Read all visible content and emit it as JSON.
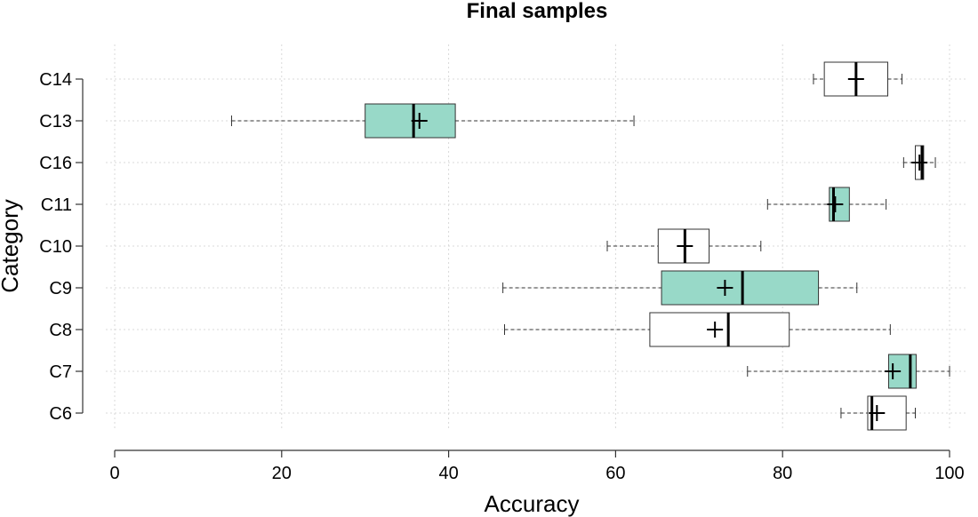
{
  "chart_data": {
    "type": "boxplot",
    "orientation": "horizontal",
    "title": "Final samples",
    "xlabel": "Accuracy",
    "ylabel": "Category",
    "xlim": [
      0,
      100
    ],
    "xticks": [
      0,
      20,
      40,
      60,
      80,
      100
    ],
    "grid": true,
    "colors": {
      "teal": "#98d9c8",
      "white": "#ffffff"
    },
    "series": [
      {
        "category": "C14",
        "min": 83.7,
        "q1": 85,
        "median": 88.8,
        "q3": 92.6,
        "max": 94.3,
        "mean": 88.8,
        "fill": "white"
      },
      {
        "category": "C13",
        "min": 14,
        "q1": 30,
        "median": 35.8,
        "q3": 40.8,
        "max": 62.2,
        "mean": 36.5,
        "fill": "teal"
      },
      {
        "category": "C16",
        "min": 94.5,
        "q1": 95.9,
        "median": 96.7,
        "q3": 96.9,
        "max": 98.3,
        "mean": 96.4,
        "fill": "white"
      },
      {
        "category": "C11",
        "min": 78.2,
        "q1": 85.6,
        "median": 86.1,
        "q3": 88,
        "max": 92.4,
        "mean": 86.3,
        "fill": "teal"
      },
      {
        "category": "C10",
        "min": 59,
        "q1": 65.1,
        "median": 68.3,
        "q3": 71.2,
        "max": 77.4,
        "mean": 68.3,
        "fill": "white"
      },
      {
        "category": "C9",
        "min": 46.5,
        "q1": 65.5,
        "median": 75.2,
        "q3": 84.3,
        "max": 88.9,
        "mean": 73.1,
        "fill": "teal"
      },
      {
        "category": "C8",
        "min": 46.7,
        "q1": 64.1,
        "median": 73.5,
        "q3": 80.8,
        "max": 92.9,
        "mean": 71.9,
        "fill": "white"
      },
      {
        "category": "C7",
        "min": 75.8,
        "q1": 92.7,
        "median": 95.3,
        "q3": 96,
        "max": 100,
        "mean": 93.2,
        "fill": "teal"
      },
      {
        "category": "C6",
        "min": 87,
        "q1": 90.2,
        "median": 90.7,
        "q3": 94.8,
        "max": 95.9,
        "mean": 91.3,
        "fill": "white"
      }
    ]
  }
}
